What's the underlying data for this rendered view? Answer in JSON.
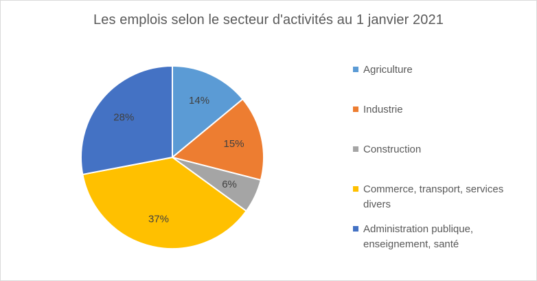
{
  "chart_data": {
    "type": "pie",
    "title": "Les emplois selon le secteur d'activités au 1 janvier 2021",
    "legend_position": "right",
    "slices": [
      {
        "name": "Agriculture",
        "value": 14,
        "label": "14%",
        "color": "#5b9bd5"
      },
      {
        "name": "Industrie",
        "value": 15,
        "label": "15%",
        "color": "#ed7d31"
      },
      {
        "name": "Construction",
        "value": 6,
        "label": "6%",
        "color": "#a5a5a5"
      },
      {
        "name": "Commerce, transport, services divers",
        "value": 37,
        "label": "37%",
        "color": "#ffc000"
      },
      {
        "name": "Administration publique, enseignement, santé",
        "value": 28,
        "label": "28%",
        "color": "#4472c4"
      }
    ]
  }
}
